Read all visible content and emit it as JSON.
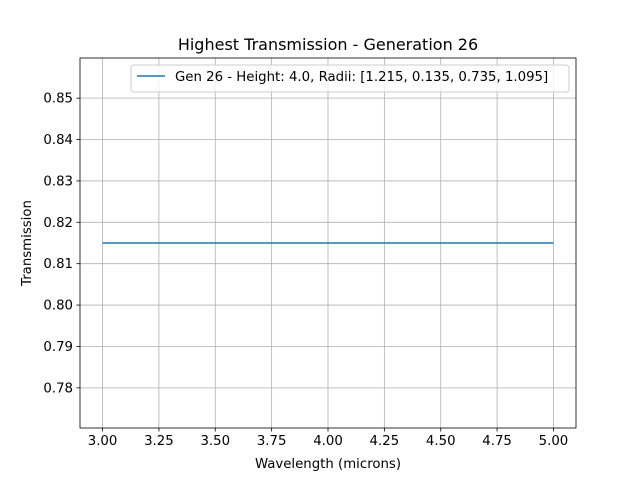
{
  "chart_data": {
    "type": "line",
    "title": "Highest Transmission - Generation 26",
    "xlabel": "Wavelength (microns)",
    "ylabel": "Transmission",
    "xlim": [
      2.9,
      5.1
    ],
    "ylim": [
      0.7703,
      0.8597
    ],
    "x_ticks": [
      3.0,
      3.25,
      3.5,
      3.75,
      4.0,
      4.25,
      4.5,
      4.75,
      5.0
    ],
    "x_tick_labels": [
      "3.00",
      "3.25",
      "3.50",
      "3.75",
      "4.00",
      "4.25",
      "4.50",
      "4.75",
      "5.00"
    ],
    "y_ticks": [
      0.78,
      0.79,
      0.8,
      0.81,
      0.82,
      0.83,
      0.84,
      0.85
    ],
    "y_tick_labels": [
      "0.78",
      "0.79",
      "0.80",
      "0.81",
      "0.82",
      "0.83",
      "0.84",
      "0.85"
    ],
    "grid": true,
    "legend_position": "top-right",
    "series": [
      {
        "name": "Gen 26 - Height: 4.0, Radii: [1.215, 0.135, 0.735, 1.095]",
        "color": "#1f77b4",
        "x": [
          3.0,
          5.0
        ],
        "y": [
          0.815,
          0.815
        ]
      }
    ]
  }
}
